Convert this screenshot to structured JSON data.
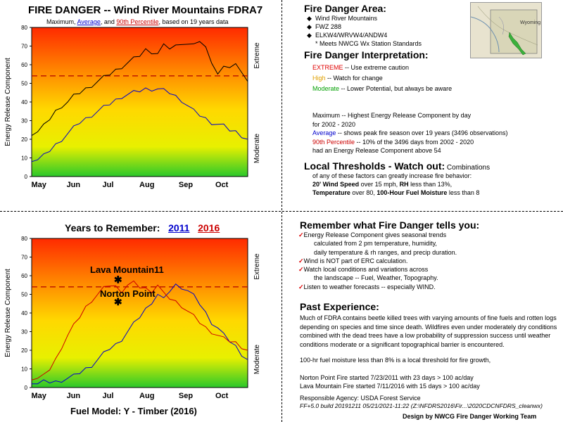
{
  "top_chart": {
    "title": "FIRE DANGER -- Wind River Mountains FDRA7",
    "subtitle": {
      "a": "Maximum, ",
      "b": "Average",
      "c": ", and ",
      "d": "90th Percentile",
      "e": ", based on 19 years data"
    },
    "ylabel": "Energy Release Component",
    "right_label_top": "Extreme",
    "right_label_bottom": "Moderate"
  },
  "bottom_chart": {
    "title_prefix": "Years to Remember:",
    "year1": "2011",
    "year2": "2016",
    "ylabel": "Energy Release Component",
    "right_label_top": "Extreme",
    "right_label_bottom": "Moderate",
    "annotation1": "Lava Mountain11",
    "annotation2": "Norton Point",
    "fuel_model": "Fuel Model: Y - Timber (2016)"
  },
  "chart_data": [
    {
      "type": "line",
      "ylim": [
        0,
        80
      ],
      "yticks": [
        0,
        10,
        20,
        30,
        40,
        50,
        60,
        70,
        80
      ],
      "xticks": [
        "May",
        "Jun",
        "Jul",
        "Aug",
        "Sep",
        "Oct"
      ],
      "threshold": 54,
      "series": [
        {
          "name": "Maximum",
          "color": "#000000",
          "x": [
            0,
            5,
            10,
            15,
            20,
            25,
            30,
            35,
            40,
            45,
            50,
            55,
            60,
            65,
            70,
            75,
            80,
            85,
            90,
            95,
            100,
            105,
            110,
            115,
            120,
            125,
            130,
            135,
            140,
            145,
            150,
            155,
            160,
            165,
            170,
            175,
            180
          ],
          "y": [
            22,
            24,
            27,
            31,
            35,
            38,
            40,
            43,
            45,
            47,
            49,
            51,
            53,
            55,
            57,
            59,
            61,
            63,
            65,
            68,
            67,
            66,
            70,
            69,
            70,
            72,
            71,
            70,
            73,
            69,
            62,
            55,
            58,
            59,
            60,
            57,
            51
          ]
        },
        {
          "name": "Average",
          "color": "#0000cc",
          "x": [
            0,
            5,
            10,
            15,
            20,
            25,
            30,
            35,
            40,
            45,
            50,
            55,
            60,
            65,
            70,
            75,
            80,
            85,
            90,
            95,
            100,
            105,
            110,
            115,
            120,
            125,
            130,
            135,
            140,
            145,
            150,
            155,
            160,
            165,
            170,
            175,
            180
          ],
          "y": [
            8,
            9,
            11,
            14,
            17,
            20,
            23,
            26,
            29,
            31,
            33,
            35,
            37,
            39,
            41,
            43,
            44,
            45,
            46,
            47,
            47,
            47,
            46,
            45,
            43,
            41,
            38,
            35,
            33,
            31,
            29,
            28,
            27,
            25,
            24,
            22,
            20
          ]
        },
        {
          "name": "90th Percentile",
          "color": "#cc0000",
          "style": "dashed",
          "x": [
            0,
            180
          ],
          "y": [
            54,
            54
          ]
        }
      ]
    },
    {
      "type": "line",
      "ylim": [
        0,
        80
      ],
      "yticks": [
        0,
        10,
        20,
        30,
        40,
        50,
        60,
        70,
        80
      ],
      "xticks": [
        "May",
        "Jun",
        "Jul",
        "Aug",
        "Sep",
        "Oct"
      ],
      "threshold": 54,
      "series": [
        {
          "name": "2011",
          "color": "#0000cc",
          "x": [
            0,
            5,
            10,
            15,
            20,
            25,
            30,
            35,
            40,
            45,
            50,
            55,
            60,
            65,
            70,
            75,
            80,
            85,
            90,
            95,
            100,
            105,
            110,
            115,
            120,
            125,
            130,
            135,
            140,
            145,
            150,
            155,
            160,
            165,
            170,
            175,
            180
          ],
          "y": [
            2,
            2,
            3,
            3,
            3,
            4,
            5,
            6,
            8,
            10,
            12,
            15,
            18,
            21,
            23,
            26,
            30,
            34,
            38,
            42,
            46,
            50,
            47,
            52,
            55,
            54,
            52,
            49,
            45,
            40,
            35,
            32,
            28,
            25,
            22,
            18,
            15
          ]
        },
        {
          "name": "2016",
          "color": "#cc0000",
          "x": [
            0,
            5,
            10,
            15,
            20,
            25,
            30,
            35,
            40,
            45,
            50,
            55,
            60,
            65,
            70,
            75,
            80,
            85,
            90,
            95,
            100,
            105,
            110,
            115,
            120,
            125,
            130,
            135,
            140,
            145,
            150,
            155,
            160,
            165,
            170,
            175,
            180
          ],
          "y": [
            4,
            5,
            6,
            10,
            15,
            22,
            28,
            33,
            38,
            43,
            47,
            50,
            53,
            55,
            54,
            52,
            55,
            56,
            54,
            53,
            52,
            55,
            50,
            48,
            46,
            44,
            41,
            38,
            35,
            32,
            30,
            28,
            26,
            25,
            24,
            22,
            20
          ]
        }
      ],
      "markers": [
        {
          "label": "Lava Mountain11",
          "x": 72,
          "y": 58
        },
        {
          "label": "Norton Point",
          "x": 72,
          "y": 46
        }
      ]
    }
  ],
  "area": {
    "heading": "Fire Danger Area:",
    "items": [
      "Wind River Mountains",
      "FWZ 288",
      "ELKW4/WRVW4/ANDW4"
    ],
    "note": "* Meets NWCG Wx Station Standards",
    "map_label": "Wyoming"
  },
  "interpretation": {
    "heading": "Fire Danger Interpretation:",
    "lines": [
      {
        "key": "EXTREME",
        "text": " -- Use extreme caution",
        "color": "#e00000"
      },
      {
        "key": "High",
        "text": " -- Watch for change",
        "color": "#e0a000"
      },
      {
        "key": "Moderate",
        "text": " -- Lower Potential, but always be aware",
        "color": "#00a000"
      }
    ]
  },
  "definitions": {
    "max1": "Maximum  -- Highest Energy Release Component by day",
    "max2": "for 2002 - 2020",
    "avg_key": "Average",
    "avg_text": " -- shows peak fire season over 19 years (3496 observations)",
    "p90_key": "90th Percentile",
    "p90_text": "  -- 10% of the 3496 days from 2002 - 2020",
    "p90_text2": "had an Energy Release Component above 54"
  },
  "thresholds": {
    "heading": "Local Thresholds - Watch out:",
    "intro": " Combinations",
    "line2": "of any of these factors can greatly increase fire behavior:",
    "wind_key": "20' Wind Speed",
    "wind_text": " over 15 mph, ",
    "rh_key": "RH",
    "rh_text": "  less than 13%,",
    "temp_key": "Temperature",
    "temp_text": " over 80, ",
    "fm_key": "100-Hour Fuel Moisture",
    "fm_text": " less than 8"
  },
  "remember": {
    "heading": "Remember what Fire Danger tells you:",
    "items": [
      "Energy Release Component gives seasonal trends",
      "calculated from 2 pm temperature, humidity,",
      "daily temperature & rh ranges, and precip duration.",
      "Wind is NOT part of ERC calculation.",
      "Watch local conditions and variations across",
      "the landscape -- Fuel, Weather, Topography.",
      "Listen to weather forecasts -- especially WIND."
    ]
  },
  "past": {
    "heading": "Past Experience:",
    "p1": "Much of FDRA contains beetle killed trees with varying amounts of fine fuels and rotten logs depending on species and time since death. Wildfires even under moderately dry conditions combined with the dead trees have a low probability of suppression success until weather conditions moderate or a significant topographical barrier is encountered.",
    "p2": "100-hr fuel moisture less than 8% is a local threshold for fire growth,",
    "p3": "Norton Point Fire started 7/23/2011 with 23 days > 100 ac/day",
    "p4": "Lava Mountain Fire started 7/11/2016 with 15 days > 100 ac/day"
  },
  "footer": {
    "agency": "Responsible Agency: USDA Forest Service",
    "build": "FF+5.0 build 20191211 05/21/2021-11:22 (Z:\\NFDRS2016\\Fir...\\2020CDCNFDRS_cleanwx)",
    "credit": "Design by NWCG Fire Danger Working Team"
  }
}
